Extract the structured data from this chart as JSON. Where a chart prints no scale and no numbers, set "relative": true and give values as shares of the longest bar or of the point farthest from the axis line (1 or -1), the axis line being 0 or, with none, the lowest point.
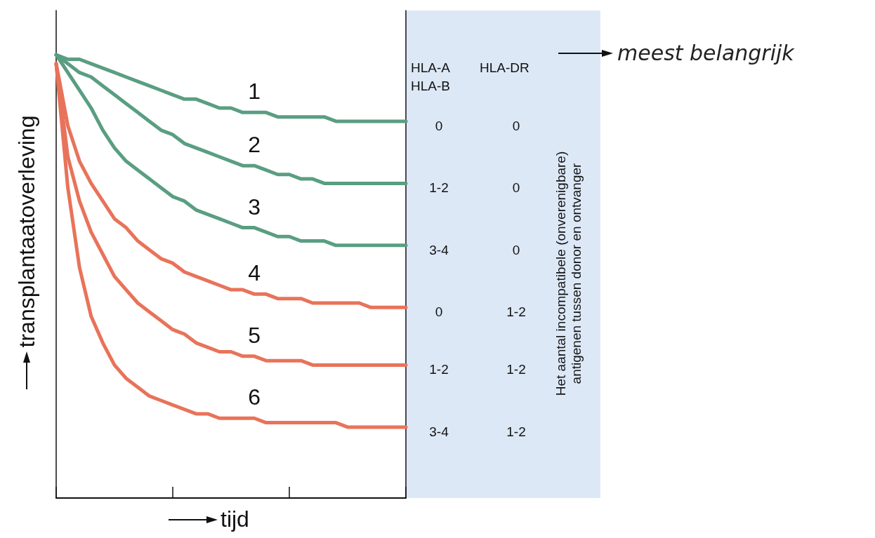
{
  "chart_data": {
    "type": "line",
    "relative": true,
    "xlabel": "tijd",
    "ylabel": "transplantaatoverleving",
    "marker": "none",
    "line_style": "solid",
    "categories": [
      null,
      null,
      null,
      null,
      null,
      null,
      null,
      null,
      null,
      null,
      null,
      null,
      null,
      null,
      null,
      null,
      null,
      null,
      null,
      null,
      null,
      null,
      null,
      null,
      null,
      null,
      null,
      null,
      null,
      null,
      null
    ],
    "series": [
      {
        "name": "1",
        "color": "#5a9e82",
        "values": [
          1.0,
          0.99,
          0.99,
          0.98,
          0.97,
          0.96,
          0.95,
          0.94,
          0.93,
          0.92,
          0.91,
          0.9,
          0.9,
          0.89,
          0.88,
          0.88,
          0.87,
          0.87,
          0.87,
          0.86,
          0.86,
          0.86,
          0.86,
          0.86,
          0.85,
          0.85,
          0.85,
          0.85,
          0.85,
          0.85,
          0.85
        ]
      },
      {
        "name": "2",
        "color": "#5a9e82",
        "values": [
          1.0,
          0.98,
          0.96,
          0.95,
          0.93,
          0.91,
          0.89,
          0.87,
          0.85,
          0.83,
          0.82,
          0.8,
          0.79,
          0.78,
          0.77,
          0.76,
          0.75,
          0.75,
          0.74,
          0.73,
          0.73,
          0.72,
          0.72,
          0.71,
          0.71,
          0.71,
          0.71,
          0.71,
          0.71,
          0.71,
          0.71
        ]
      },
      {
        "name": "3",
        "color": "#5a9e82",
        "values": [
          1.0,
          0.96,
          0.92,
          0.88,
          0.83,
          0.79,
          0.76,
          0.74,
          0.72,
          0.7,
          0.68,
          0.67,
          0.65,
          0.64,
          0.63,
          0.62,
          0.61,
          0.61,
          0.6,
          0.59,
          0.59,
          0.58,
          0.58,
          0.58,
          0.57,
          0.57,
          0.57,
          0.57,
          0.57,
          0.57,
          0.57
        ]
      },
      {
        "name": "4",
        "color": "#e8735a",
        "values": [
          0.98,
          0.84,
          0.76,
          0.71,
          0.67,
          0.63,
          0.61,
          0.58,
          0.56,
          0.54,
          0.53,
          0.51,
          0.5,
          0.49,
          0.48,
          0.47,
          0.47,
          0.46,
          0.46,
          0.45,
          0.45,
          0.45,
          0.44,
          0.44,
          0.44,
          0.44,
          0.44,
          0.43,
          0.43,
          0.43,
          0.43
        ]
      },
      {
        "name": "5",
        "color": "#e8735a",
        "values": [
          0.98,
          0.77,
          0.67,
          0.6,
          0.55,
          0.5,
          0.47,
          0.44,
          0.42,
          0.4,
          0.38,
          0.37,
          0.35,
          0.34,
          0.33,
          0.33,
          0.32,
          0.32,
          0.31,
          0.31,
          0.31,
          0.31,
          0.3,
          0.3,
          0.3,
          0.3,
          0.3,
          0.3,
          0.3,
          0.3,
          0.3
        ]
      },
      {
        "name": "6",
        "color": "#e8735a",
        "values": [
          0.98,
          0.7,
          0.52,
          0.41,
          0.35,
          0.3,
          0.27,
          0.25,
          0.23,
          0.22,
          0.21,
          0.2,
          0.19,
          0.19,
          0.18,
          0.18,
          0.18,
          0.18,
          0.17,
          0.17,
          0.17,
          0.17,
          0.17,
          0.17,
          0.17,
          0.16,
          0.16,
          0.16,
          0.16,
          0.16,
          0.16
        ]
      }
    ],
    "annotations": [
      "HLA-A",
      "HLA-B",
      "HLA-DR",
      "0",
      "0",
      "1-2",
      "0",
      "3-4",
      "0",
      "0",
      "1-2",
      "1-2",
      "1-2",
      "3-4",
      "1-2",
      "Het aantal incompatibele (onverenigbare)",
      "antigenen tussen donor en ontvanger",
      "meest belangrijk"
    ]
  }
}
